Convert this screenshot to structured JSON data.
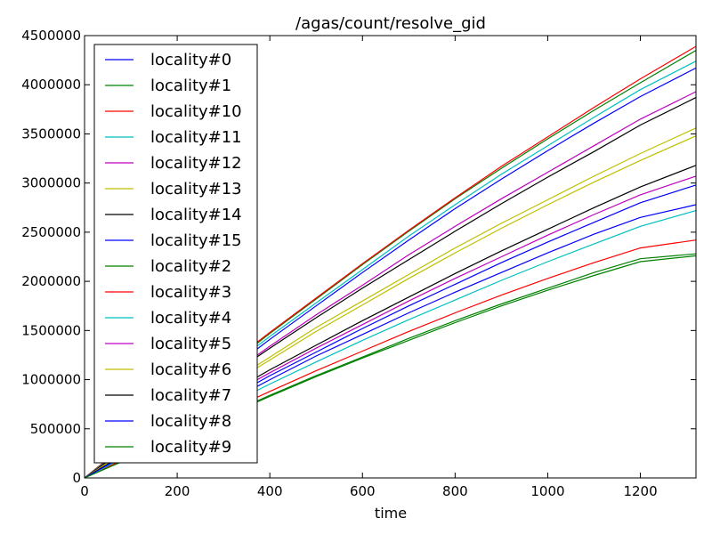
{
  "chart_data": {
    "type": "line",
    "title": "/agas/count/resolve_gid",
    "xlabel": "time",
    "ylabel": "",
    "xlim": [
      0,
      1320
    ],
    "ylim": [
      0,
      4500000
    ],
    "x_ticks": [
      0,
      200,
      400,
      600,
      800,
      1000,
      1200
    ],
    "y_ticks": [
      0,
      500000,
      1000000,
      1500000,
      2000000,
      2500000,
      3000000,
      3500000,
      4000000,
      4500000
    ],
    "x_tick_labels": [
      "0",
      "200",
      "400",
      "600",
      "800",
      "1000",
      "1200"
    ],
    "y_tick_labels": [
      "0",
      "500000",
      "1000000",
      "1500000",
      "2000000",
      "2500000",
      "3000000",
      "3500000",
      "4000000",
      "4500000"
    ],
    "grid": false,
    "legend_position": "top-left",
    "x": [
      0,
      100,
      200,
      300,
      400,
      500,
      600,
      700,
      800,
      900,
      1000,
      1100,
      1200,
      1320
    ],
    "series": [
      {
        "name": "locality#0",
        "color": "#0000ff",
        "values": [
          0,
          360000,
          720000,
          1050000,
          1410000,
          1750000,
          2090000,
          2420000,
          2740000,
          3040000,
          3330000,
          3610000,
          3880000,
          4170000
        ]
      },
      {
        "name": "locality#1",
        "color": "#008000",
        "values": [
          0,
          380000,
          760000,
          1100000,
          1470000,
          1820000,
          2170000,
          2510000,
          2840000,
          3150000,
          3450000,
          3740000,
          4020000,
          4350000
        ]
      },
      {
        "name": "locality#10",
        "color": "#ff0000",
        "values": [
          0,
          385000,
          770000,
          1120000,
          1480000,
          1830000,
          2180000,
          2520000,
          2850000,
          3170000,
          3470000,
          3770000,
          4060000,
          4390000
        ]
      },
      {
        "name": "locality#11",
        "color": "#00bfbf",
        "values": [
          0,
          365000,
          735000,
          1080000,
          1440000,
          1780000,
          2120000,
          2460000,
          2780000,
          3090000,
          3380000,
          3670000,
          3950000,
          4240000
        ]
      },
      {
        "name": "locality#12",
        "color": "#bf00bf",
        "values": [
          0,
          345000,
          690000,
          1010000,
          1340000,
          1660000,
          1960000,
          2270000,
          2560000,
          2840000,
          3110000,
          3380000,
          3650000,
          3930000
        ]
      },
      {
        "name": "locality#13",
        "color": "#bfbf00",
        "values": [
          0,
          315000,
          630000,
          930000,
          1230000,
          1530000,
          1800000,
          2070000,
          2340000,
          2590000,
          2830000,
          3070000,
          3300000,
          3560000
        ]
      },
      {
        "name": "locality#14",
        "color": "#000000",
        "values": [
          0,
          340000,
          680000,
          1000000,
          1320000,
          1630000,
          1930000,
          2220000,
          2510000,
          2790000,
          3060000,
          3320000,
          3590000,
          3870000
        ]
      },
      {
        "name": "locality#15",
        "color": "#0000ff",
        "values": [
          0,
          250000,
          510000,
          750000,
          1000000,
          1240000,
          1460000,
          1680000,
          1890000,
          2090000,
          2290000,
          2480000,
          2650000,
          2780000
        ]
      },
      {
        "name": "locality#2",
        "color": "#008000",
        "values": [
          0,
          210000,
          430000,
          630000,
          840000,
          1040000,
          1230000,
          1420000,
          1600000,
          1770000,
          1930000,
          2090000,
          2230000,
          2280000
        ]
      },
      {
        "name": "locality#3",
        "color": "#ff0000",
        "values": [
          0,
          225000,
          450000,
          665000,
          880000,
          1090000,
          1290000,
          1490000,
          1680000,
          1860000,
          2030000,
          2190000,
          2340000,
          2420000
        ]
      },
      {
        "name": "locality#4",
        "color": "#00bfbf",
        "values": [
          0,
          245000,
          490000,
          720000,
          955000,
          1180000,
          1400000,
          1610000,
          1810000,
          2010000,
          2200000,
          2380000,
          2560000,
          2720000
        ]
      },
      {
        "name": "locality#5",
        "color": "#bf00bf",
        "values": [
          0,
          275000,
          550000,
          810000,
          1070000,
          1320000,
          1560000,
          1800000,
          2030000,
          2250000,
          2470000,
          2680000,
          2880000,
          3070000
        ]
      },
      {
        "name": "locality#6",
        "color": "#bfbf00",
        "values": [
          0,
          310000,
          620000,
          910000,
          1200000,
          1490000,
          1760000,
          2030000,
          2290000,
          2540000,
          2780000,
          3010000,
          3230000,
          3480000
        ]
      },
      {
        "name": "locality#7",
        "color": "#000000",
        "values": [
          0,
          280000,
          560000,
          830000,
          1100000,
          1350000,
          1600000,
          1840000,
          2080000,
          2310000,
          2530000,
          2750000,
          2960000,
          3180000
        ]
      },
      {
        "name": "locality#8",
        "color": "#0000ff",
        "values": [
          0,
          265000,
          530000,
          780000,
          1040000,
          1280000,
          1520000,
          1750000,
          1970000,
          2190000,
          2400000,
          2600000,
          2800000,
          2980000
        ]
      },
      {
        "name": "locality#9",
        "color": "#008000",
        "values": [
          0,
          205000,
          420000,
          620000,
          830000,
          1030000,
          1220000,
          1400000,
          1580000,
          1750000,
          1910000,
          2060000,
          2200000,
          2260000
        ]
      }
    ]
  }
}
